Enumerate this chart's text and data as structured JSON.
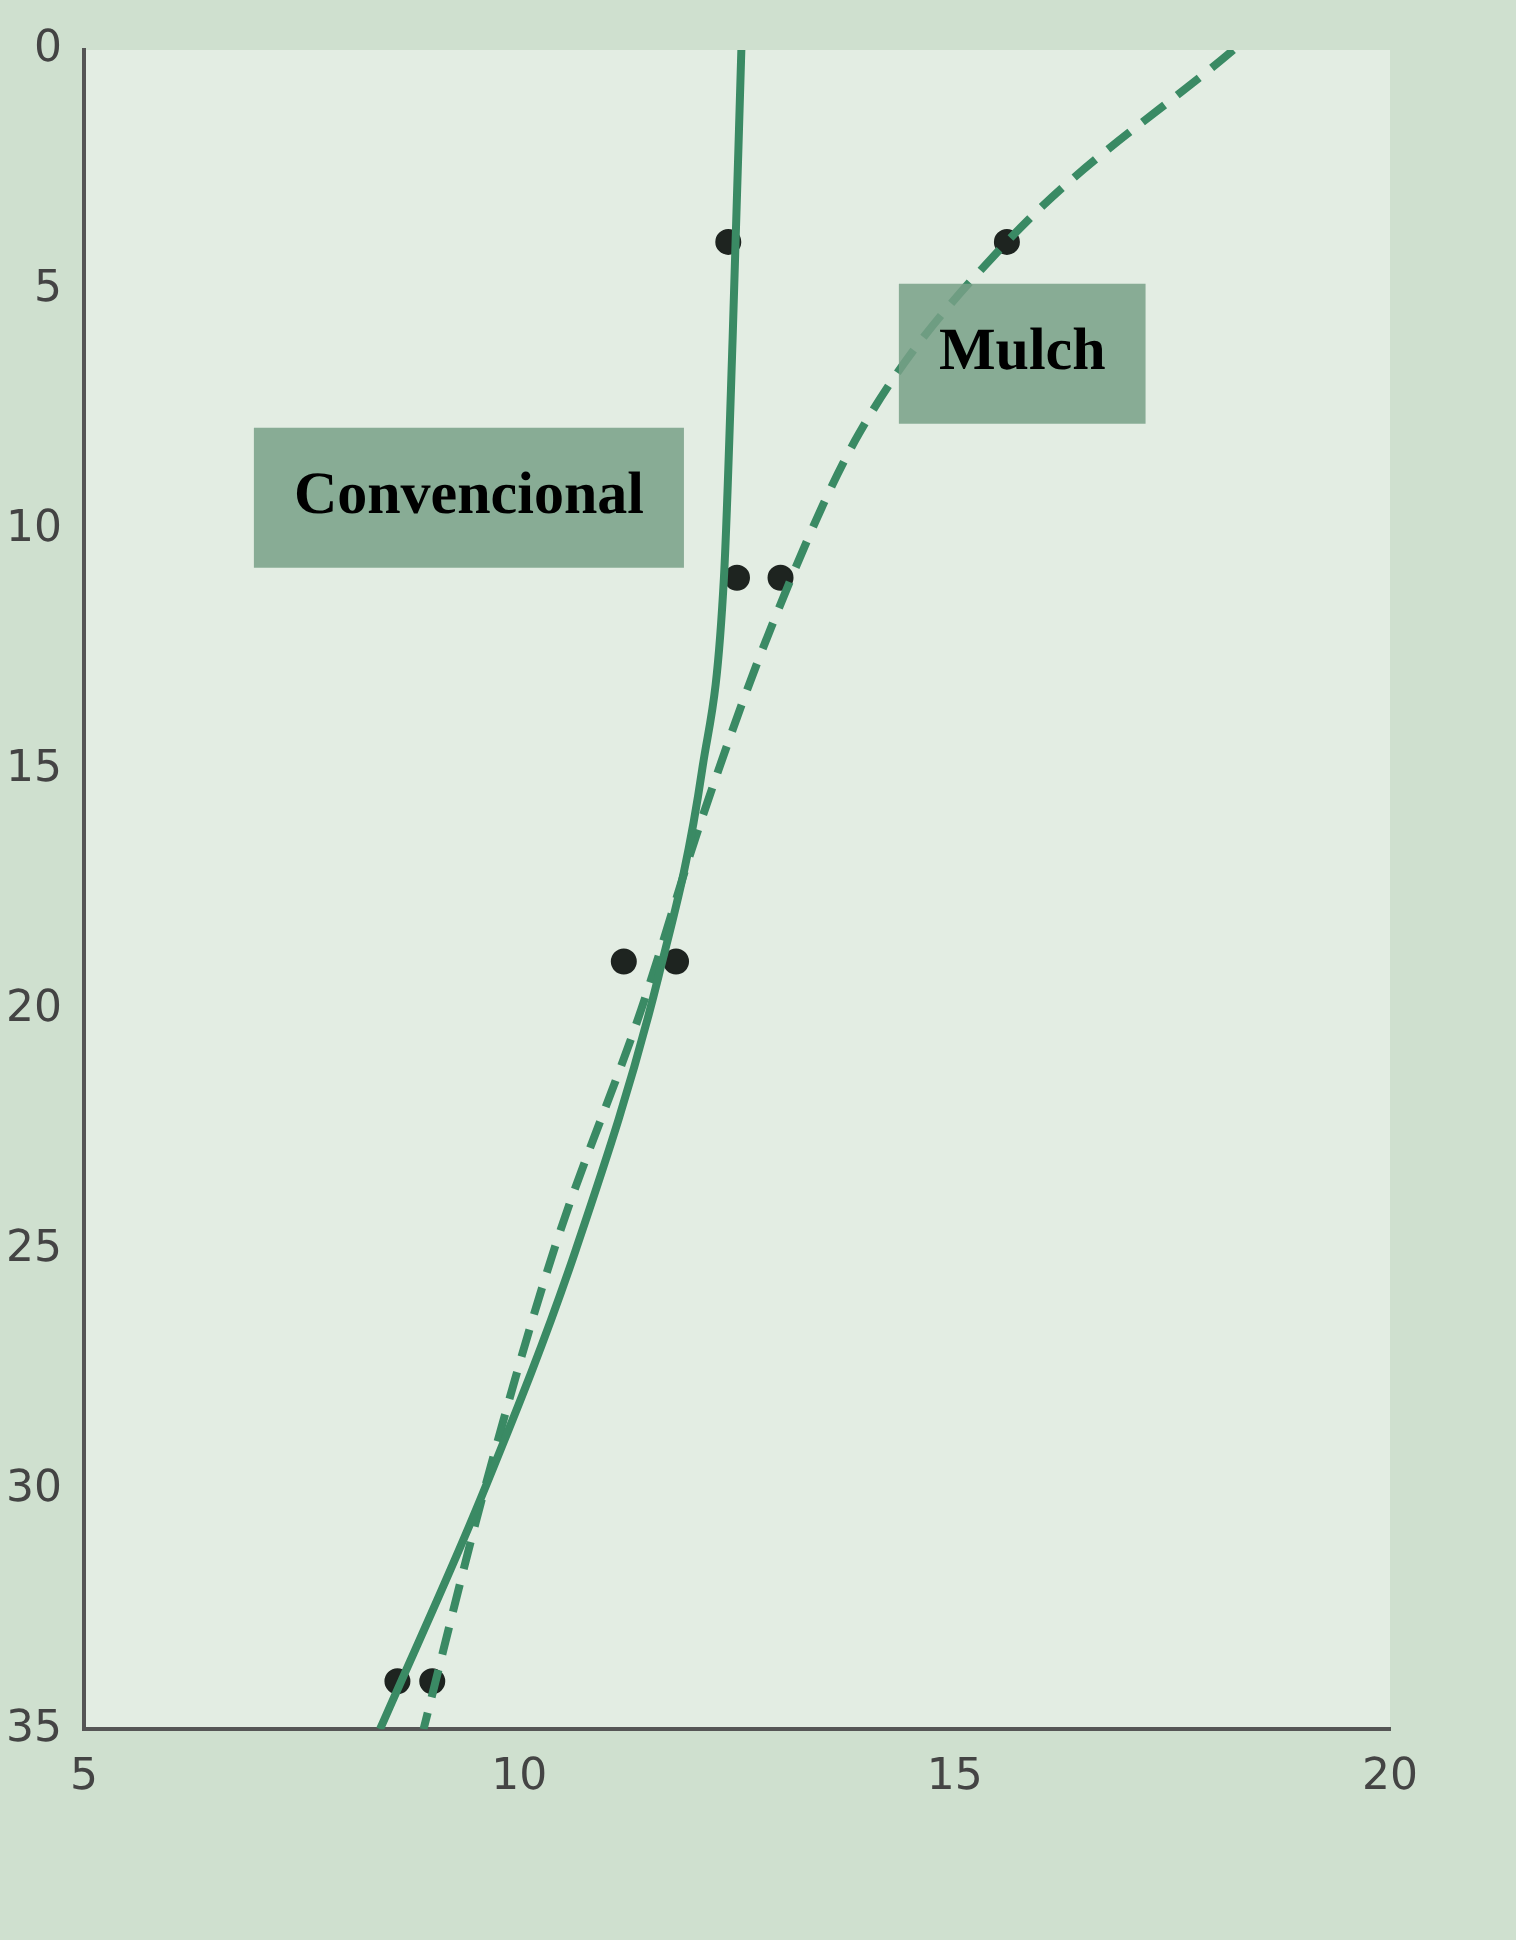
{
  "chart_data": {
    "type": "line",
    "xlim": [
      5,
      20
    ],
    "xticks": [
      5,
      10,
      15,
      20
    ],
    "ylim": [
      35,
      0
    ],
    "yticks": [
      0,
      5,
      10,
      15,
      20,
      25,
      30,
      35
    ],
    "grid": false,
    "legend": false,
    "marker": "none",
    "series": [
      {
        "name": "Convencional",
        "color": "#3a8a64",
        "line_style": "solid",
        "x": [
          12.55,
          12.45,
          12.35,
          12.1,
          11.6,
          10.65,
          9.6,
          8.4
        ],
        "values": [
          0,
          6,
          11,
          15,
          19.3,
          25,
          30,
          35
        ]
      },
      {
        "name": "Mulch",
        "color": "#3a8a64",
        "line_style": "dashed",
        "x": [
          18.2,
          15.6,
          13.9,
          12.9,
          12.1,
          11.4,
          10.4,
          9.6,
          8.9
        ],
        "values": [
          0,
          4,
          8,
          12,
          16,
          20,
          25,
          30,
          35
        ]
      },
      {
        "type": "scatter",
        "color": "#1e2420",
        "marker": "circle",
        "x": [
          12.4,
          15.6,
          12.5,
          13.0,
          11.2,
          11.8,
          8.6,
          9.0
        ],
        "values": [
          4,
          4,
          11,
          11,
          19,
          19,
          34,
          34
        ]
      }
    ]
  }
}
